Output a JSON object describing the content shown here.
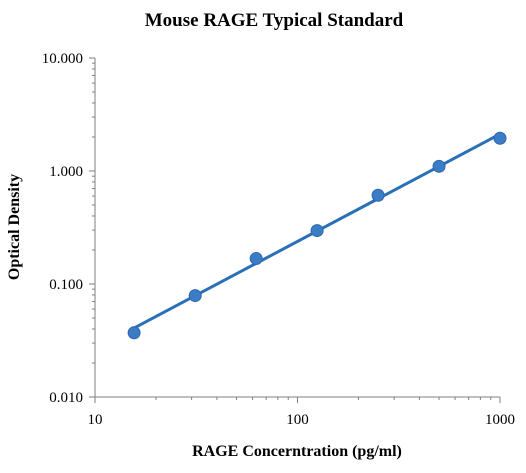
{
  "chart_data": {
    "type": "scatter",
    "title": "Mouse RAGE Typical Standard",
    "xlabel": "RAGE Concerntration (pg/ml)",
    "ylabel": "Optical Density",
    "x_scale": "log",
    "y_scale": "log",
    "xlim": [
      10,
      1000
    ],
    "ylim": [
      0.01,
      10
    ],
    "x_ticks": [
      {
        "value": 10,
        "label": "10"
      },
      {
        "value": 100,
        "label": "100"
      },
      {
        "value": 1000,
        "label": "1000"
      }
    ],
    "y_ticks": [
      {
        "value": 0.01,
        "label": "0.010"
      },
      {
        "value": 0.1,
        "label": "0.100"
      },
      {
        "value": 1,
        "label": "1.000"
      },
      {
        "value": 10,
        "label": "10.000"
      }
    ],
    "grid": false,
    "legend": "none",
    "series": [
      {
        "x": [
          15.6,
          31.25,
          62.5,
          125,
          250,
          500,
          1000
        ],
        "y": [
          0.037,
          0.079,
          0.168,
          0.297,
          0.61,
          1.1,
          1.95
        ],
        "trendline": true
      }
    ],
    "colors": {
      "marker": "#3a7dc6",
      "marker_edge": "#2d67a8",
      "line": "#2a70b8",
      "axis": "#7f7f7f"
    }
  }
}
